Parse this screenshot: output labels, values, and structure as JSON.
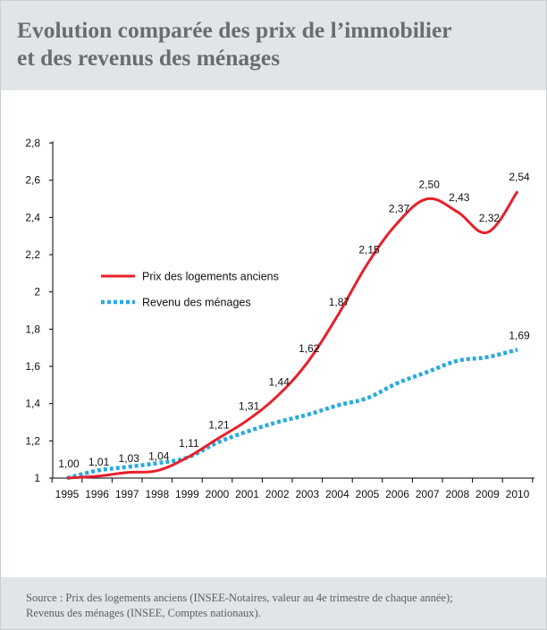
{
  "header": {
    "title_line1": "Evolution comparée des prix de l’immobilier",
    "title_line2": "et des revenus des ménages"
  },
  "footer": {
    "source_line1": "Source : Prix des logements anciens (INSEE-Notaires, valeur au 4e trimestre de chaque année);",
    "source_line2": "Revenus des ménages (INSEE, Comptes nationaux)."
  },
  "colors": {
    "header_bg": "#e1e5e8",
    "prix_line": "#e8202a",
    "revenu_line": "#2aa9e0"
  },
  "chart_data": {
    "type": "line",
    "title": "Evolution comparée des prix de l’immobilier et des revenus des ménages",
    "xlabel": "",
    "ylabel": "",
    "x": [
      "1995",
      "1996",
      "1997",
      "1998",
      "1999",
      "2000",
      "2001",
      "2002",
      "2003",
      "2004",
      "2005",
      "2006",
      "2007",
      "2008",
      "2009",
      "2010"
    ],
    "ylim": [
      1,
      2.8
    ],
    "yticks": [
      "1",
      "1,2",
      "1,4",
      "1,6",
      "1,8",
      "2",
      "2,2",
      "2,4",
      "2,6",
      "2,8"
    ],
    "grid": false,
    "legend_position": "upper-left",
    "series": [
      {
        "name": "Prix des logements anciens",
        "style": "solid",
        "color": "#e8202a",
        "points": [
          {
            "x": "1995",
            "y": 1.0,
            "label": "1,00"
          },
          {
            "x": "1996",
            "y": 1.01,
            "label": "1,01"
          },
          {
            "x": "1997",
            "y": 1.03,
            "label": "1,03"
          },
          {
            "x": "1998",
            "y": 1.04,
            "label": "1,04"
          },
          {
            "x": "1999",
            "y": 1.11,
            "label": "1,11"
          },
          {
            "x": "2000",
            "y": 1.21,
            "label": "1,21"
          },
          {
            "x": "2001",
            "y": 1.31,
            "label": "1,31"
          },
          {
            "x": "2002",
            "y": 1.44,
            "label": "1,44"
          },
          {
            "x": "2003",
            "y": 1.62,
            "label": "1,62"
          },
          {
            "x": "2004",
            "y": 1.87,
            "label": "1,87"
          },
          {
            "x": "2005",
            "y": 2.15,
            "label": "2,15"
          },
          {
            "x": "2006",
            "y": 2.37,
            "label": "2,37"
          },
          {
            "x": "2007",
            "y": 2.5,
            "label": "2,50"
          },
          {
            "x": "2008",
            "y": 2.43,
            "label": "2,43"
          },
          {
            "x": "2009",
            "y": 2.32,
            "label": "2,32"
          },
          {
            "x": "2010",
            "y": 2.54,
            "label": "2,54"
          }
        ]
      },
      {
        "name": "Revenu des ménages",
        "style": "dotted",
        "color": "#2aa9e0",
        "points": [
          {
            "x": "1995",
            "y": 1.0
          },
          {
            "x": "1996",
            "y": 1.04
          },
          {
            "x": "1997",
            "y": 1.06
          },
          {
            "x": "1998",
            "y": 1.08
          },
          {
            "x": "1999",
            "y": 1.11
          },
          {
            "x": "2000",
            "y": 1.19
          },
          {
            "x": "2001",
            "y": 1.25
          },
          {
            "x": "2002",
            "y": 1.3
          },
          {
            "x": "2003",
            "y": 1.34
          },
          {
            "x": "2004",
            "y": 1.39
          },
          {
            "x": "2005",
            "y": 1.43
          },
          {
            "x": "2006",
            "y": 1.51
          },
          {
            "x": "2007",
            "y": 1.57
          },
          {
            "x": "2008",
            "y": 1.63
          },
          {
            "x": "2009",
            "y": 1.65
          },
          {
            "x": "2010",
            "y": 1.69,
            "label": "1,69"
          }
        ]
      }
    ]
  }
}
